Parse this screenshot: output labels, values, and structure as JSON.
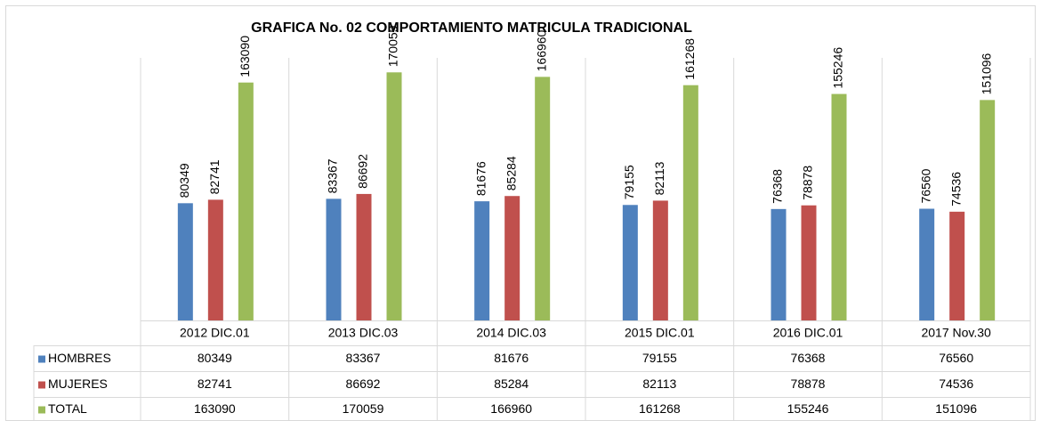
{
  "chart_data": {
    "type": "bar",
    "title": "GRAFICA No. 02 COMPORTAMIENTO MATRICULA TRADICIONAL",
    "categories": [
      "2012 DIC.01",
      "2013 DIC.03",
      "2014 DIC.03",
      "2015 DIC.01",
      "2016 DIC.01",
      "2017 Nov.30"
    ],
    "series": [
      {
        "name": "HOMBRES",
        "color": "#4f81bd",
        "values": [
          80349,
          83367,
          81676,
          79155,
          76368,
          76560
        ]
      },
      {
        "name": "MUJERES",
        "color": "#c0504d",
        "values": [
          82741,
          86692,
          85284,
          82113,
          78878,
          74536
        ]
      },
      {
        "name": "TOTAL",
        "color": "#9bbb59",
        "values": [
          163090,
          170059,
          166960,
          161268,
          155246,
          151096
        ]
      }
    ],
    "ylim": [
      0,
      180000
    ]
  }
}
